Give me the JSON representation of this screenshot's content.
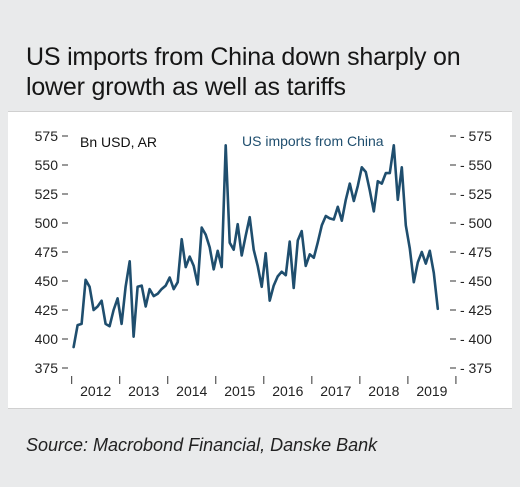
{
  "title": "US imports from China down sharply on lower growth as well as tariffs",
  "source": "Source: Macrobond Financial, Danske Bank",
  "colors": {
    "line": "#1f4e6e",
    "background": "#e9eaeb",
    "plot": "#ffffff",
    "tick": "#333333"
  },
  "chart_data": {
    "type": "line",
    "title": "",
    "unit_label": "Bn USD, AR",
    "ylim": [
      375,
      575
    ],
    "yticks": [
      375,
      400,
      425,
      450,
      475,
      500,
      525,
      550,
      575
    ],
    "xlim": [
      2011.8,
      2019.92
    ],
    "xticks": [
      2012,
      2013,
      2014,
      2015,
      2016,
      2017,
      2018,
      2019
    ],
    "xticklabels": [
      "2012",
      "2013",
      "2014",
      "2015",
      "2016",
      "2017",
      "2018",
      "2019"
    ],
    "grid": false,
    "legend": "top-center",
    "series": [
      {
        "name": "US imports from China",
        "x": [
          2012.0,
          2012.083,
          2012.167,
          2012.25,
          2012.333,
          2012.417,
          2012.5,
          2012.583,
          2012.667,
          2012.75,
          2012.833,
          2012.917,
          2013.0,
          2013.083,
          2013.167,
          2013.25,
          2013.333,
          2013.417,
          2013.5,
          2013.583,
          2013.667,
          2013.75,
          2013.833,
          2013.917,
          2014.0,
          2014.083,
          2014.167,
          2014.25,
          2014.333,
          2014.417,
          2014.5,
          2014.583,
          2014.667,
          2014.75,
          2014.833,
          2014.917,
          2015.0,
          2015.083,
          2015.167,
          2015.25,
          2015.333,
          2015.417,
          2015.5,
          2015.583,
          2015.667,
          2015.75,
          2015.833,
          2015.917,
          2016.0,
          2016.083,
          2016.167,
          2016.25,
          2016.333,
          2016.417,
          2016.5,
          2016.583,
          2016.667,
          2016.75,
          2016.833,
          2016.917,
          2017.0,
          2017.083,
          2017.167,
          2017.25,
          2017.333,
          2017.417,
          2017.5,
          2017.583,
          2017.667,
          2017.75,
          2017.833,
          2017.917,
          2018.0,
          2018.083,
          2018.167,
          2018.25,
          2018.333,
          2018.417,
          2018.5,
          2018.583,
          2018.667,
          2018.75,
          2018.833,
          2018.917,
          2019.0,
          2019.083,
          2019.167,
          2019.25,
          2019.333,
          2019.417,
          2019.5,
          2019.583
        ],
        "values": [
          393,
          412,
          413,
          451,
          445,
          425,
          428,
          433,
          413,
          411,
          425,
          435,
          413,
          445,
          467,
          402,
          445,
          446,
          428,
          443,
          437,
          439,
          443,
          446,
          453,
          443,
          449,
          486,
          462,
          471,
          463,
          447,
          496,
          490,
          479,
          460,
          476,
          462,
          567,
          483,
          477,
          499,
          472,
          489,
          505,
          477,
          463,
          445,
          474,
          433,
          446,
          454,
          458,
          455,
          484,
          444,
          485,
          493,
          463,
          473,
          470,
          483,
          498,
          506,
          504,
          503,
          514,
          502,
          520,
          534,
          519,
          532,
          548,
          544,
          528,
          510,
          536,
          534,
          543,
          543,
          567,
          520,
          548,
          498,
          478,
          449,
          466,
          475,
          465,
          476,
          457,
          426
        ]
      }
    ]
  }
}
